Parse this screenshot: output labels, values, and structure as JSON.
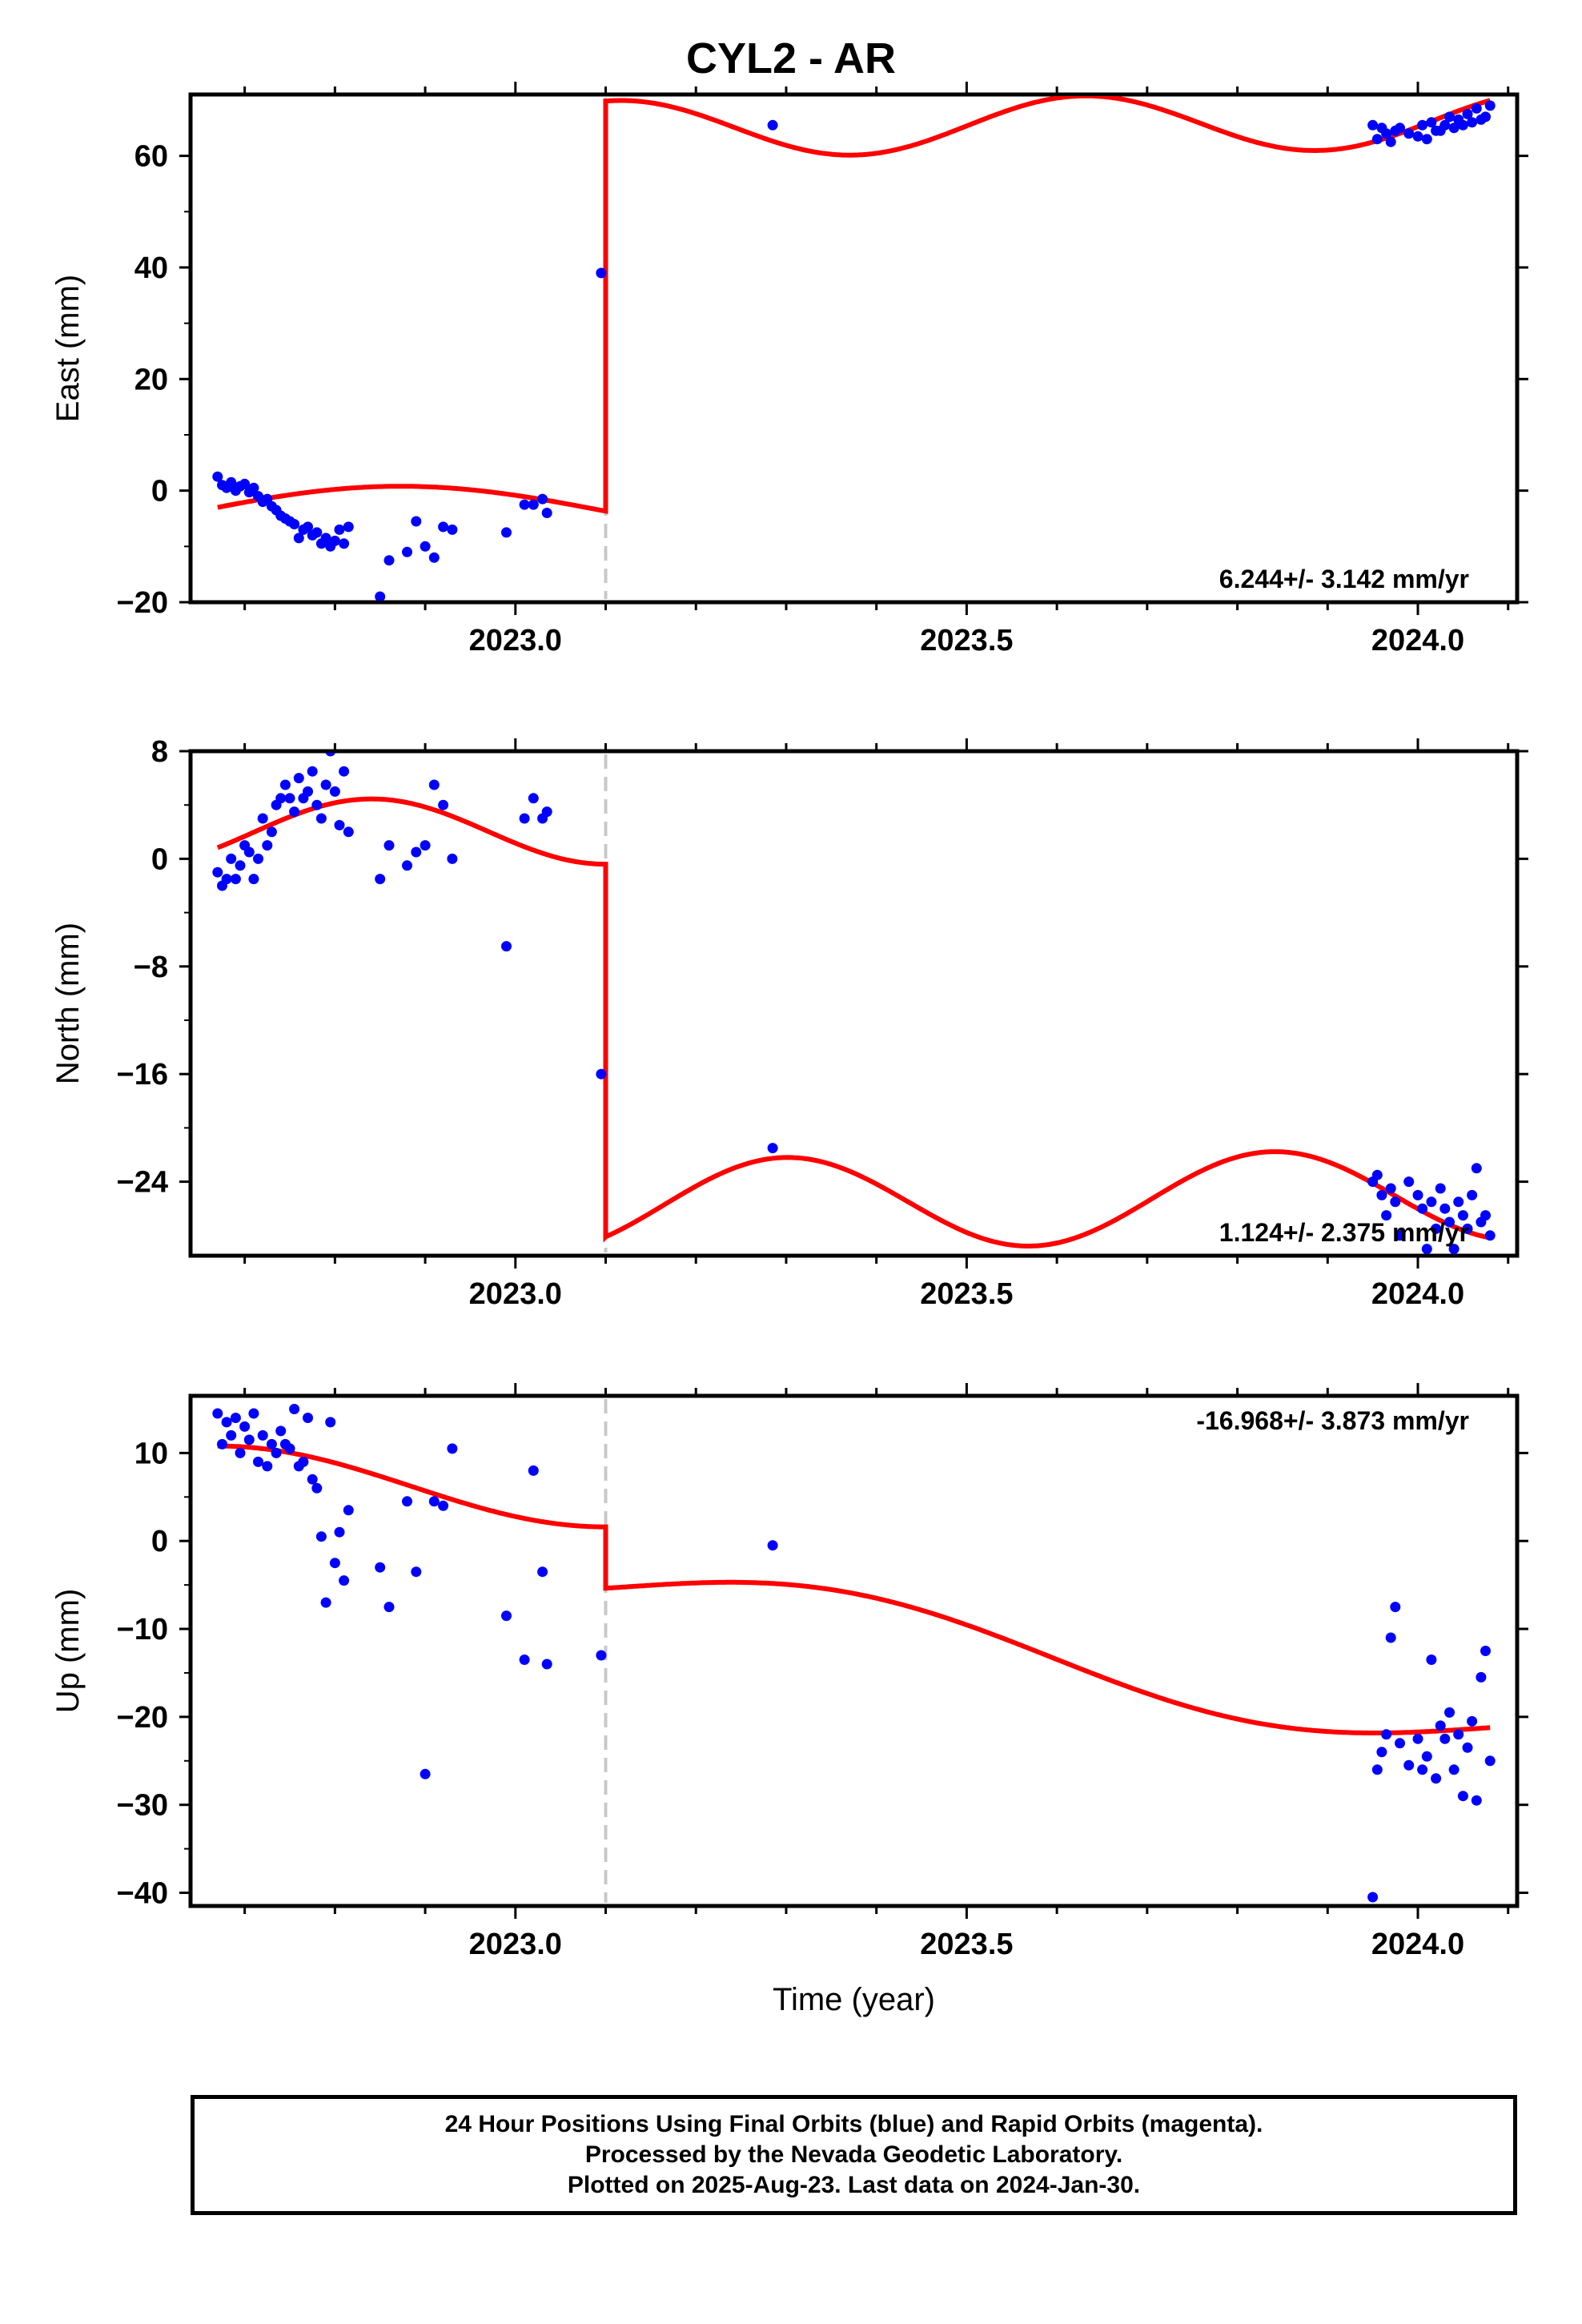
{
  "title": "CYL2 - AR",
  "footer": {
    "line1": "24 Hour Positions Using Final Orbits (blue) and Rapid Orbits (magenta).",
    "line2": "Processed by the Nevada Geodetic Laboratory.",
    "line3": "Plotted on 2025-Aug-23. Last data on 2024-Jan-30."
  },
  "colors": {
    "data_points": "#0000ff",
    "model_fit": "#ff0000",
    "break_line": "#c8c8c8"
  },
  "chart_data": [
    {
      "type": "scatter",
      "ylabel": "East (mm)",
      "xlabel": "",
      "xlim": [
        2022.64,
        2024.11
      ],
      "ylim": [
        -20,
        71
      ],
      "x_ticks": [
        "2023.0",
        "2023.5",
        "2024.0"
      ],
      "x_tick_values": [
        2023.0,
        2023.5,
        2024.0
      ],
      "y_ticks": [
        -20,
        0,
        20,
        40,
        60
      ],
      "rate_label": "6.244+/- 3.142 mm/yr",
      "rate_label_position": "bottom-right",
      "break_year": 2023.1,
      "series": [
        {
          "kind": "points",
          "x": [
            2022.67,
            2022.675,
            2022.68,
            2022.685,
            2022.69,
            2022.695,
            2022.7,
            2022.705,
            2022.71,
            2022.715,
            2022.72,
            2022.725,
            2022.73,
            2022.735,
            2022.74,
            2022.745,
            2022.75,
            2022.755,
            2022.76,
            2022.765,
            2022.77,
            2022.775,
            2022.78,
            2022.785,
            2022.79,
            2022.795,
            2022.8,
            2022.805,
            2022.81,
            2022.815,
            2022.85,
            2022.86,
            2022.88,
            2022.89,
            2022.9,
            2022.91,
            2022.92,
            2022.93,
            2022.99,
            2023.01,
            2023.02,
            2023.03,
            2023.035,
            2023.095,
            2023.285,
            2023.95,
            2023.955,
            2023.96,
            2023.965,
            2023.97,
            2023.975,
            2023.98,
            2023.99,
            2024.0,
            2024.005,
            2024.01,
            2024.015,
            2024.02,
            2024.025,
            2024.03,
            2024.035,
            2024.04,
            2024.045,
            2024.05,
            2024.055,
            2024.06,
            2024.065,
            2024.07,
            2024.075,
            2024.08
          ],
          "y": [
            2.5,
            1.0,
            0.5,
            1.5,
            0.0,
            0.8,
            1.2,
            -0.3,
            0.5,
            -1.0,
            -2.0,
            -1.5,
            -2.8,
            -3.5,
            -4.5,
            -5.0,
            -5.5,
            -6.0,
            -8.5,
            -7.0,
            -6.5,
            -8.0,
            -7.5,
            -9.5,
            -8.5,
            -10.0,
            -9.0,
            -7.0,
            -9.5,
            -6.5,
            -19.0,
            -12.5,
            -11.0,
            -5.5,
            -10.0,
            -12.0,
            -6.5,
            -7.0,
            -7.5,
            -2.5,
            -2.5,
            -1.5,
            -4.0,
            39.0,
            65.5,
            65.5,
            63.0,
            65.0,
            64.0,
            62.5,
            64.5,
            65.0,
            64.0,
            63.5,
            65.5,
            63.0,
            66.0,
            64.5,
            64.5,
            65.5,
            67.0,
            65.0,
            66.5,
            65.5,
            67.5,
            66.0,
            68.5,
            66.5,
            67.0,
            69.0
          ]
        },
        {
          "kind": "model_line",
          "name": ""
        }
      ]
    },
    {
      "type": "scatter",
      "ylabel": "North (mm)",
      "xlabel": "",
      "xlim": [
        2022.64,
        2024.11
      ],
      "ylim": [
        -29.5,
        8
      ],
      "x_ticks": [
        "2023.0",
        "2023.5",
        "2024.0"
      ],
      "x_tick_values": [
        2023.0,
        2023.5,
        2024.0
      ],
      "y_ticks": [
        -24,
        -16,
        -8,
        0,
        8
      ],
      "rate_label": "1.124+/- 2.375 mm/yr",
      "rate_label_position": "bottom-right",
      "break_year": 2023.1,
      "series": [
        {
          "kind": "points",
          "x": [
            2022.67,
            2022.675,
            2022.68,
            2022.685,
            2022.69,
            2022.695,
            2022.7,
            2022.705,
            2022.71,
            2022.715,
            2022.72,
            2022.725,
            2022.73,
            2022.735,
            2022.74,
            2022.745,
            2022.75,
            2022.755,
            2022.76,
            2022.765,
            2022.77,
            2022.775,
            2022.78,
            2022.785,
            2022.79,
            2022.795,
            2022.8,
            2022.805,
            2022.81,
            2022.815,
            2022.85,
            2022.86,
            2022.88,
            2022.89,
            2022.9,
            2022.91,
            2022.92,
            2022.93,
            2022.99,
            2023.01,
            2023.02,
            2023.03,
            2023.035,
            2023.095,
            2023.285,
            2023.95,
            2023.955,
            2023.96,
            2023.965,
            2023.97,
            2023.975,
            2023.98,
            2023.99,
            2024.0,
            2024.005,
            2024.01,
            2024.015,
            2024.02,
            2024.025,
            2024.03,
            2024.035,
            2024.04,
            2024.045,
            2024.05,
            2024.055,
            2024.06,
            2024.065,
            2024.07,
            2024.075,
            2024.08
          ],
          "y": [
            -1.0,
            -2.0,
            -1.5,
            0.0,
            -1.5,
            -0.5,
            1.0,
            0.5,
            -1.5,
            0.0,
            3.0,
            1.0,
            2.0,
            4.0,
            4.5,
            5.5,
            4.5,
            3.5,
            6.0,
            4.5,
            5.0,
            6.5,
            4.0,
            3.0,
            5.5,
            8.0,
            5.0,
            2.5,
            6.5,
            2.0,
            -1.5,
            1.0,
            -0.5,
            0.5,
            1.0,
            5.5,
            4.0,
            0.0,
            -6.5,
            3.0,
            4.5,
            3.0,
            3.5,
            -16.0,
            -21.5,
            -24.0,
            -23.5,
            -25.0,
            -26.5,
            -24.5,
            -25.5,
            -28.0,
            -24.0,
            -25.0,
            -26.0,
            -29.0,
            -25.5,
            -27.5,
            -24.5,
            -26.0,
            -27.0,
            -29.0,
            -25.5,
            -26.5,
            -27.5,
            -25.0,
            -23.0,
            -27.0,
            -26.5,
            -28.0
          ]
        },
        {
          "kind": "model_line",
          "name": ""
        }
      ]
    },
    {
      "type": "scatter",
      "ylabel": "Up (mm)",
      "xlabel": "Time (year)",
      "xlim": [
        2022.64,
        2024.11
      ],
      "ylim": [
        -41.5,
        16.5
      ],
      "x_ticks": [
        "2023.0",
        "2023.5",
        "2024.0"
      ],
      "x_tick_values": [
        2023.0,
        2023.5,
        2024.0
      ],
      "y_ticks": [
        -40,
        -30,
        -20,
        -10,
        0,
        10
      ],
      "rate_label": "-16.968+/- 3.873 mm/yr",
      "rate_label_position": "top-right",
      "break_year": 2023.1,
      "series": [
        {
          "kind": "points",
          "x": [
            2022.67,
            2022.675,
            2022.68,
            2022.685,
            2022.69,
            2022.695,
            2022.7,
            2022.705,
            2022.71,
            2022.715,
            2022.72,
            2022.725,
            2022.73,
            2022.735,
            2022.74,
            2022.745,
            2022.75,
            2022.755,
            2022.76,
            2022.765,
            2022.77,
            2022.775,
            2022.78,
            2022.785,
            2022.79,
            2022.795,
            2022.8,
            2022.805,
            2022.81,
            2022.815,
            2022.85,
            2022.86,
            2022.88,
            2022.89,
            2022.9,
            2022.91,
            2022.92,
            2022.93,
            2022.99,
            2023.01,
            2023.02,
            2023.03,
            2023.035,
            2023.095,
            2023.285,
            2023.95,
            2023.955,
            2023.96,
            2023.965,
            2023.97,
            2023.975,
            2023.98,
            2023.99,
            2024.0,
            2024.005,
            2024.01,
            2024.015,
            2024.02,
            2024.025,
            2024.03,
            2024.035,
            2024.04,
            2024.045,
            2024.05,
            2024.055,
            2024.06,
            2024.065,
            2024.07,
            2024.075,
            2024.08
          ],
          "y": [
            14.5,
            11.0,
            13.5,
            12.0,
            14.0,
            10.0,
            13.0,
            11.5,
            14.5,
            9.0,
            12.0,
            8.5,
            11.0,
            10.0,
            12.5,
            11.0,
            10.5,
            15.0,
            8.5,
            9.0,
            14.0,
            7.0,
            6.0,
            0.5,
            -7.0,
            13.5,
            -2.5,
            1.0,
            -4.5,
            3.5,
            -3.0,
            -7.5,
            4.5,
            -3.5,
            -26.5,
            4.5,
            4.0,
            10.5,
            -8.5,
            -13.5,
            8.0,
            -3.5,
            -14.0,
            -13.0,
            -0.5,
            -40.5,
            -26.0,
            -24.0,
            -22.0,
            -11.0,
            -7.5,
            -23.0,
            -25.5,
            -22.5,
            -26.0,
            -24.5,
            -13.5,
            -27.0,
            -21.0,
            -22.5,
            -19.5,
            -26.0,
            -22.0,
            -29.0,
            -23.5,
            -20.5,
            -29.5,
            -15.5,
            -12.5,
            -25.0
          ]
        },
        {
          "kind": "model_line",
          "name": ""
        }
      ]
    }
  ]
}
